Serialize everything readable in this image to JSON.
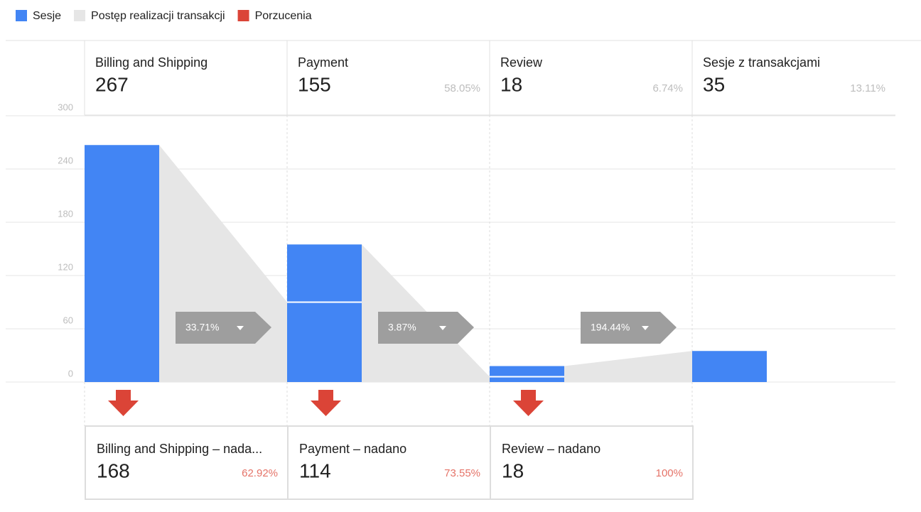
{
  "chart_data": {
    "type": "funnel",
    "legend": [
      {
        "name": "Sesje",
        "color": "#4285f4"
      },
      {
        "name": "Postęp realizacji transakcji",
        "color": "#e6e6e6"
      },
      {
        "name": "Porzucenia",
        "color": "#db4437"
      }
    ],
    "ylim": [
      0,
      300
    ],
    "yticks": [
      0,
      60,
      120,
      180,
      240,
      300
    ],
    "categories": [
      "Billing and Shipping",
      "Payment",
      "Review",
      "Sesje z transakcjami"
    ],
    "values": [
      267,
      155,
      18,
      35
    ],
    "shares": [
      null,
      58.05,
      6.74,
      13.11
    ],
    "share_labels": [
      null,
      "58.05%",
      "6.74%",
      "13.11%"
    ],
    "progress": [
      33.71,
      3.87,
      194.44
    ],
    "progress_labels": [
      "33.71%",
      "3.87%",
      "194.44%"
    ],
    "exit_categories": [
      "Billing and Shipping – nada...",
      "Payment – nadano",
      "Review – nadano"
    ],
    "exit_values": [
      168,
      114,
      18
    ],
    "exit_shares": [
      62.92,
      73.55,
      100
    ],
    "exit_share_labels": [
      "62.92%",
      "73.55%",
      "100%"
    ]
  }
}
